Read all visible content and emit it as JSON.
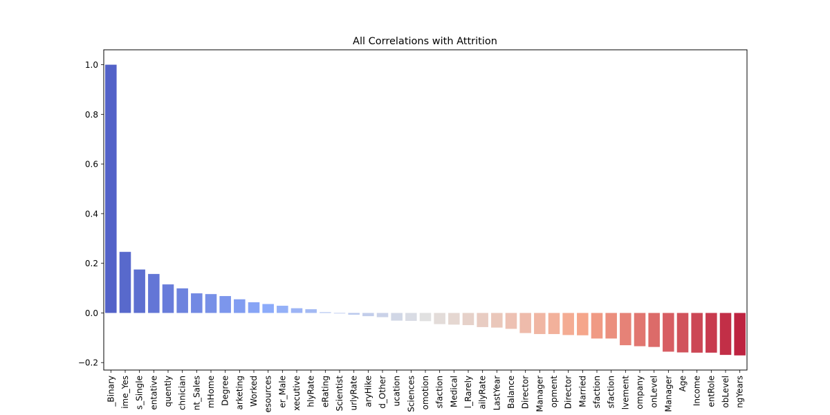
{
  "chart_data": {
    "type": "bar",
    "title": "All Correlations with Attrition",
    "xlabel": "",
    "ylabel": "",
    "ylim": [
      -0.23,
      1.06
    ],
    "yticks": [
      1.0,
      0.8,
      0.6,
      0.4,
      0.2,
      0.0,
      -0.2
    ],
    "ytick_labels": [
      "1.0",
      "0.8",
      "0.6",
      "0.4",
      "0.2",
      "0.0",
      "−0.2"
    ],
    "grid": false,
    "legend": "none",
    "colormap": "coolwarm",
    "categories": [
      "_Binary",
      "ime_Yes",
      "s_Single",
      "entative",
      "quently",
      "chnician",
      "nt_Sales",
      "mHome",
      "Degree",
      "arketing",
      "Worked",
      "esources",
      "er_Male",
      "xecutive",
      "hlyRate",
      "eRating",
      "Scientist",
      "urlyRate",
      "aryHike",
      "d_Other",
      "ucation",
      "Sciences",
      "omotion",
      "sfaction",
      "Medical",
      "l_Rarely",
      "ailyRate",
      "LastYear",
      "Balance",
      "Director",
      "Manager",
      "opment",
      "Director",
      "Married",
      "sfaction",
      "sfaction",
      "lvement",
      "ompany",
      "onLevel",
      "Manager",
      "Age",
      "Income",
      "entRole",
      "obLevel",
      "ngYears"
    ],
    "values": [
      1.0,
      0.246,
      0.175,
      0.157,
      0.115,
      0.099,
      0.079,
      0.076,
      0.068,
      0.055,
      0.043,
      0.036,
      0.029,
      0.019,
      0.015,
      0.003,
      0.0,
      -0.007,
      -0.013,
      -0.017,
      -0.031,
      -0.032,
      -0.033,
      -0.045,
      -0.047,
      -0.049,
      -0.057,
      -0.059,
      -0.064,
      -0.081,
      -0.085,
      -0.085,
      -0.089,
      -0.09,
      -0.103,
      -0.103,
      -0.13,
      -0.134,
      -0.137,
      -0.156,
      -0.159,
      -0.16,
      -0.16,
      -0.169,
      -0.171
    ]
  }
}
